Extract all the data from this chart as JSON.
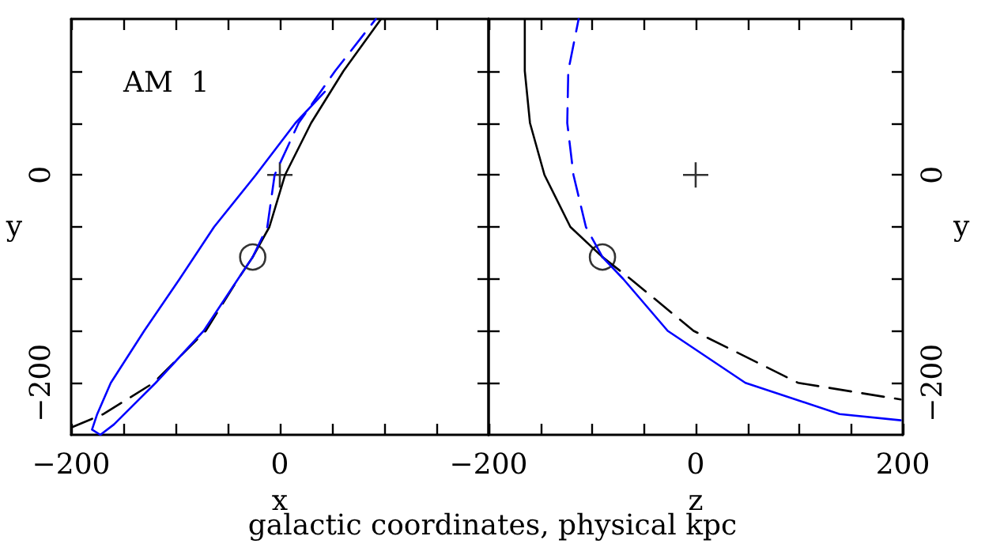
{
  "chart_data": [
    {
      "type": "line",
      "xlabel": "x",
      "ylabel": "y",
      "annotations": [
        "AM 1",
        "galactic coordinates, physical kpc"
      ],
      "xlim": [
        -200,
        200
      ],
      "ylim": [
        -250,
        150
      ],
      "xticks": [
        {
          "value": -200,
          "label": "−200"
        },
        {
          "value": -150,
          "label": null
        },
        {
          "value": -100,
          "label": null
        },
        {
          "value": -50,
          "label": null
        },
        {
          "value": 0,
          "label": "0"
        },
        {
          "value": 50,
          "label": null
        },
        {
          "value": 100,
          "label": null
        },
        {
          "value": 150,
          "label": null
        },
        {
          "value": 200,
          "label": null
        }
      ],
      "yticks": [
        {
          "value": -200,
          "label": "−200"
        },
        {
          "value": -150,
          "label": null
        },
        {
          "value": -100,
          "label": null
        },
        {
          "value": -50,
          "label": null
        },
        {
          "value": 0,
          "label": "0"
        },
        {
          "value": 50,
          "label": null
        },
        {
          "value": 100,
          "label": null
        }
      ],
      "grid": false,
      "series": [
        {
          "type": "line",
          "color": "#000000",
          "line_style": "solid",
          "x": [
            -26,
            -10,
            5,
            30,
            61,
            97
          ],
          "values": [
            -79,
            -50,
            0,
            50,
            100,
            150
          ]
        },
        {
          "type": "line",
          "color": "#000000",
          "line_style": "dashed",
          "x": [
            -26,
            -40,
            -71,
            -121,
            -169,
            -200
          ],
          "values": [
            -79,
            -100,
            -150,
            -200,
            -230,
            -243
          ]
        },
        {
          "type": "line",
          "color": "#0000ff",
          "line_style": "solid",
          "x": [
            -26,
            -40,
            -73,
            -119,
            -159,
            -172,
            -180,
            -175,
            -162,
            -130,
            -96,
            -63,
            -23,
            15,
            43
          ],
          "values": [
            -79,
            -100,
            -150,
            -200,
            -240,
            -250,
            -245,
            -230,
            -200,
            -150,
            -100,
            -50,
            0,
            50,
            80
          ]
        },
        {
          "type": "line",
          "color": "#0000ff",
          "line_style": "dashed",
          "x": [
            -26,
            -12,
            -5,
            18,
            53,
            92
          ],
          "values": [
            -79,
            -50,
            0,
            50,
            100,
            150
          ]
        },
        {
          "type": "scatter",
          "marker": "circle",
          "color": "#000000",
          "x": [
            -26
          ],
          "values": [
            -79
          ]
        },
        {
          "type": "scatter",
          "marker": "cross",
          "color": "#000000",
          "x": [
            0
          ],
          "values": [
            0
          ]
        }
      ]
    },
    {
      "type": "line",
      "xlabel": "z",
      "y2label": "y",
      "xlim": [
        -200,
        200
      ],
      "y2lim": [
        -250,
        150
      ],
      "xticks": [
        {
          "value": -200,
          "label": "−200"
        },
        {
          "value": -150,
          "label": null
        },
        {
          "value": -100,
          "label": null
        },
        {
          "value": -50,
          "label": null
        },
        {
          "value": 0,
          "label": "0"
        },
        {
          "value": 50,
          "label": null
        },
        {
          "value": 100,
          "label": null
        },
        {
          "value": 150,
          "label": null
        },
        {
          "value": 200,
          "label": "200"
        }
      ],
      "y2ticks": [
        {
          "value": -200,
          "label": "−200"
        },
        {
          "value": -150,
          "label": null
        },
        {
          "value": -100,
          "label": null
        },
        {
          "value": -50,
          "label": null
        },
        {
          "value": 0,
          "label": "0"
        },
        {
          "value": 50,
          "label": null
        },
        {
          "value": 100,
          "label": null
        }
      ],
      "grid": false,
      "series": [
        {
          "type": "line",
          "axis": "y2",
          "color": "#000000",
          "line_style": "solid",
          "x": [
            -90,
            -121,
            -146,
            -160,
            -165,
            -165
          ],
          "values": [
            -79,
            -50,
            0,
            50,
            100,
            150
          ]
        },
        {
          "type": "line",
          "axis": "y2",
          "color": "#000000",
          "line_style": "dashed",
          "x": [
            -90,
            -63,
            -2,
            99,
            198
          ],
          "values": [
            -79,
            -100,
            -150,
            -200,
            -216
          ]
        },
        {
          "type": "line",
          "axis": "y2",
          "color": "#0000ff",
          "line_style": "solid",
          "x": [
            -90,
            -70,
            -27,
            48,
            139,
            198
          ],
          "values": [
            -79,
            -100,
            -150,
            -200,
            -230,
            -236
          ]
        },
        {
          "type": "line",
          "axis": "y2",
          "color": "#0000ff",
          "line_style": "dashed",
          "x": [
            -90,
            -106,
            -118,
            -124,
            -123,
            -113
          ],
          "values": [
            -79,
            -50,
            0,
            50,
            100,
            150
          ]
        },
        {
          "type": "scatter",
          "axis": "y2",
          "marker": "circle",
          "color": "#000000",
          "x": [
            -90
          ],
          "values": [
            -79
          ]
        },
        {
          "type": "scatter",
          "axis": "y2",
          "marker": "cross",
          "color": "#000000",
          "x": [
            0
          ],
          "values": [
            0
          ]
        }
      ]
    }
  ]
}
